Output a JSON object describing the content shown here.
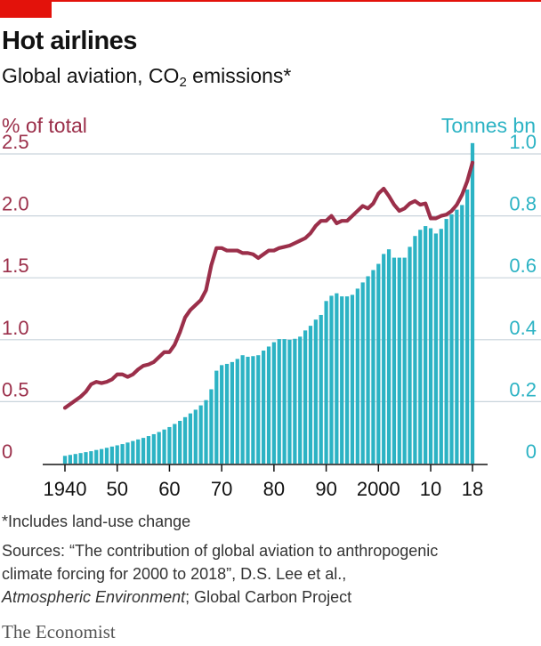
{
  "header": {
    "title": "Hot airlines",
    "subtitle_prefix": "Global aviation, CO",
    "subtitle_sub": "2",
    "subtitle_suffix": " emissions*"
  },
  "axis_labels": {
    "left": "% of total",
    "right": "Tonnes bn"
  },
  "footer": {
    "footnote": "*Includes land-use change",
    "sources_line1": "Sources: “The contribution of global aviation to anthropogenic",
    "sources_line2": "climate forcing for 2000 to 2018”, D.S. Lee et al.,",
    "sources_line3_italic": "Atmospheric Environment",
    "sources_line3_rest": "; Global Carbon Project",
    "brand": "The Economist"
  },
  "colors": {
    "share_line": "#9b2f4a",
    "tonnes_bars": "#2cb3c4",
    "gridline": "#c9d4dc",
    "accent": "#e3120b"
  },
  "chart_data": {
    "type": "bar+line",
    "title": "Hot airlines",
    "subtitle": "Global aviation, CO2 emissions*",
    "x_tick_labels": [
      "1940",
      "50",
      "60",
      "70",
      "80",
      "90",
      "2000",
      "10",
      "18"
    ],
    "x_tick_years": [
      1940,
      1950,
      1960,
      1970,
      1980,
      1990,
      2000,
      2010,
      2018
    ],
    "x_range": [
      1940,
      2018
    ],
    "left_axis": {
      "label": "% of total",
      "range": [
        0,
        2.5
      ],
      "ticks": [
        "0",
        "0.5",
        "1.0",
        "1.5",
        "2.0",
        "2.5"
      ],
      "tick_values": [
        0,
        0.5,
        1.0,
        1.5,
        2.0,
        2.5
      ]
    },
    "right_axis": {
      "label": "Tonnes bn",
      "range": [
        0,
        1.0
      ],
      "ticks": [
        "0",
        "0.2",
        "0.4",
        "0.6",
        "0.8",
        "1.0"
      ],
      "tick_values": [
        0,
        0.2,
        0.4,
        0.6,
        0.8,
        1.0
      ]
    },
    "grid": true,
    "years": [
      1940,
      1941,
      1942,
      1943,
      1944,
      1945,
      1946,
      1947,
      1948,
      1949,
      1950,
      1951,
      1952,
      1953,
      1954,
      1955,
      1956,
      1957,
      1958,
      1959,
      1960,
      1961,
      1962,
      1963,
      1964,
      1965,
      1966,
      1967,
      1968,
      1969,
      1970,
      1971,
      1972,
      1973,
      1974,
      1975,
      1976,
      1977,
      1978,
      1979,
      1980,
      1981,
      1982,
      1983,
      1984,
      1985,
      1986,
      1987,
      1988,
      1989,
      1990,
      1991,
      1992,
      1993,
      1994,
      1995,
      1996,
      1997,
      1998,
      1999,
      2000,
      2001,
      2002,
      2003,
      2004,
      2005,
      2006,
      2007,
      2008,
      2009,
      2010,
      2011,
      2012,
      2013,
      2014,
      2015,
      2016,
      2017,
      2018
    ],
    "series": [
      {
        "name": "Tonnes bn",
        "axis": "right",
        "type": "bar",
        "values": [
          0.025,
          0.028,
          0.031,
          0.034,
          0.037,
          0.04,
          0.044,
          0.047,
          0.051,
          0.055,
          0.059,
          0.063,
          0.068,
          0.073,
          0.078,
          0.083,
          0.089,
          0.095,
          0.102,
          0.11,
          0.118,
          0.128,
          0.138,
          0.15,
          0.162,
          0.174,
          0.188,
          0.205,
          0.24,
          0.3,
          0.318,
          0.322,
          0.328,
          0.338,
          0.35,
          0.345,
          0.347,
          0.35,
          0.365,
          0.378,
          0.392,
          0.402,
          0.402,
          0.4,
          0.403,
          0.41,
          0.43,
          0.445,
          0.465,
          0.48,
          0.525,
          0.542,
          0.55,
          0.54,
          0.54,
          0.545,
          0.565,
          0.585,
          0.605,
          0.625,
          0.645,
          0.677,
          0.692,
          0.665,
          0.665,
          0.665,
          0.7,
          0.735,
          0.755,
          0.767,
          0.76,
          0.743,
          0.758,
          0.79,
          0.805,
          0.82,
          0.835,
          0.885,
          1.035
        ]
      },
      {
        "name": "% of total",
        "axis": "left",
        "type": "line",
        "values": [
          0.45,
          0.48,
          0.51,
          0.54,
          0.58,
          0.64,
          0.66,
          0.65,
          0.66,
          0.68,
          0.72,
          0.72,
          0.7,
          0.72,
          0.76,
          0.79,
          0.8,
          0.82,
          0.86,
          0.9,
          0.9,
          0.96,
          1.06,
          1.18,
          1.24,
          1.28,
          1.32,
          1.4,
          1.6,
          1.74,
          1.74,
          1.72,
          1.72,
          1.72,
          1.7,
          1.7,
          1.69,
          1.66,
          1.69,
          1.72,
          1.72,
          1.74,
          1.75,
          1.76,
          1.78,
          1.8,
          1.82,
          1.86,
          1.92,
          1.96,
          1.96,
          2.0,
          1.94,
          1.96,
          1.96,
          2.0,
          2.04,
          2.08,
          2.06,
          2.1,
          2.18,
          2.22,
          2.16,
          2.09,
          2.04,
          2.06,
          2.1,
          2.12,
          2.09,
          2.1,
          1.98,
          1.98,
          2.0,
          2.01,
          2.04,
          2.09,
          2.17,
          2.28,
          2.43
        ]
      }
    ]
  }
}
